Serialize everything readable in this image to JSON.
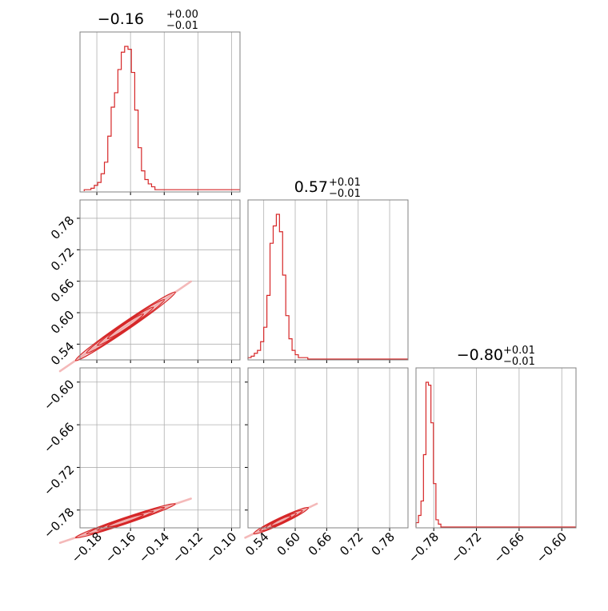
{
  "colors": {
    "line": "#d62728",
    "grid": "#b0b0b0",
    "frame": "#808080",
    "text": "#000000"
  },
  "titles": [
    {
      "main": "−0.16",
      "sup": "+0.00",
      "sub": "−0.01"
    },
    {
      "main": "0.57",
      "sup": "+0.01",
      "sub": "−0.01"
    },
    {
      "main": "−0.80",
      "sup": "+0.01",
      "sub": "−0.01"
    }
  ],
  "chart_data": {
    "type": "corner",
    "grid": true,
    "parameters": [
      {
        "range": [
          -0.19,
          -0.095
        ],
        "ticks": [
          -0.18,
          -0.16,
          -0.14,
          -0.12,
          -0.1
        ],
        "tick_labels": [
          "−0.18",
          "−0.16",
          "−0.14",
          "−0.12",
          "−0.10"
        ],
        "hist": {
          "bin_edges": [
            -0.1875,
            -0.1855,
            -0.1835,
            -0.1815,
            -0.1795,
            -0.1775,
            -0.1755,
            -0.1735,
            -0.1715,
            -0.1695,
            -0.1675,
            -0.1655,
            -0.1635,
            -0.1615,
            -0.1595,
            -0.1575,
            -0.1555,
            -0.1535,
            -0.1515,
            -0.1495,
            -0.1475,
            -0.1455,
            -0.1435,
            -0.095
          ],
          "counts": [
            1,
            1,
            2,
            4,
            6,
            12,
            20,
            38,
            58,
            68,
            84,
            96,
            100,
            98,
            82,
            56,
            30,
            14,
            8,
            5,
            3,
            1,
            1
          ]
        }
      },
      {
        "range": [
          0.51,
          0.815
        ],
        "ticks": [
          0.54,
          0.6,
          0.66,
          0.72,
          0.78
        ],
        "tick_labels": [
          "0.54",
          "0.60",
          "0.66",
          "0.72",
          "0.78"
        ],
        "hist": {
          "bin_edges": [
            0.51,
            0.516,
            0.522,
            0.528,
            0.534,
            0.54,
            0.546,
            0.552,
            0.558,
            0.564,
            0.57,
            0.576,
            0.582,
            0.588,
            0.594,
            0.6,
            0.606,
            0.612,
            0.618,
            0.624,
            0.815
          ],
          "counts": [
            1,
            2,
            4,
            6,
            12,
            22,
            44,
            80,
            92,
            100,
            88,
            58,
            30,
            14,
            6,
            3,
            1,
            1,
            1,
            0
          ]
        }
      },
      {
        "range": [
          -0.805,
          -0.58
        ],
        "ticks": [
          -0.78,
          -0.72,
          -0.66,
          -0.6
        ],
        "tick_labels": [
          "−0.78",
          "−0.72",
          "−0.66",
          "−0.60"
        ],
        "hist": {
          "bin_edges": [
            -0.805,
            -0.8015,
            -0.798,
            -0.7945,
            -0.791,
            -0.7875,
            -0.784,
            -0.7805,
            -0.777,
            -0.7735,
            -0.77,
            -0.58
          ],
          "counts": [
            3,
            8,
            18,
            50,
            100,
            98,
            72,
            30,
            5,
            2,
            0
          ]
        }
      }
    ],
    "pairs": [
      {
        "x_param": 0,
        "y_param": 1,
        "center": [
          -0.163,
          0.574
        ],
        "slope": 2.2,
        "major_half_span": 0.037,
        "minor_half_width": 0.004
      },
      {
        "x_param": 0,
        "y_param": 2,
        "center": [
          -0.163,
          -0.795
        ],
        "slope": 0.8,
        "major_half_span": 0.037,
        "minor_half_width": 0.0018
      },
      {
        "x_param": 1,
        "y_param": 2,
        "center": [
          0.573,
          -0.795
        ],
        "slope": 0.35,
        "major_half_span": 0.065,
        "minor_half_width": 0.0018
      }
    ]
  }
}
